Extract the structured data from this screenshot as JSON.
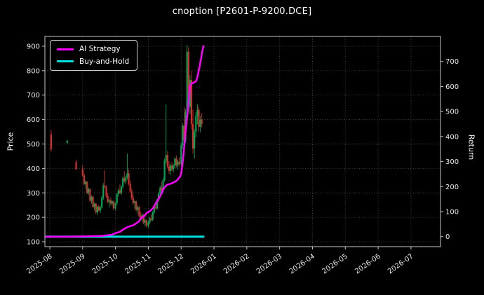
{
  "chart_data": {
    "type": "candlestick",
    "title": "cnoption [P2601-P-9200.DCE]",
    "x_unit": "months since 2025-08-01",
    "left_axis": {
      "label": "Price",
      "ticks": [
        100,
        200,
        300,
        400,
        500,
        600,
        700,
        800,
        900
      ],
      "ylim": [
        80,
        940
      ]
    },
    "right_axis": {
      "label": "Return",
      "ticks": [
        0,
        100,
        200,
        300,
        400,
        500,
        600,
        700
      ],
      "ylim": [
        -40,
        800
      ]
    },
    "x_axis": {
      "tick_labels": [
        "2025-08",
        "2025-09",
        "2025-10",
        "2025-11",
        "2025-12",
        "2026-01",
        "2026-02",
        "2026-03",
        "2026-04",
        "2026-05",
        "2026-06",
        "2026-07"
      ],
      "xlim": [
        -0.15,
        11.9
      ],
      "label_rotation_deg": 35
    },
    "grid": true,
    "legend": [
      {
        "label": "AI Strategy",
        "color": "#ff00ff"
      },
      {
        "label": "Buy-and-Hold",
        "color": "#00e0e0"
      }
    ],
    "colors": {
      "background": "#000000",
      "text": "#ffffff",
      "axis": "#c8c8c8",
      "grid": "#474747",
      "up": "#00a651",
      "down": "#d2302c"
    },
    "candles_ohlc": [
      [
        0.04,
        540,
        556,
        468,
        478
      ],
      [
        0.53,
        505,
        516,
        499,
        513
      ],
      [
        0.8,
        426,
        436,
        392,
        398
      ],
      [
        1.0,
        398,
        413,
        366,
        372
      ],
      [
        1.045,
        372,
        380,
        330,
        336
      ],
      [
        1.09,
        336,
        352,
        318,
        346
      ],
      [
        1.135,
        346,
        348,
        294,
        300
      ],
      [
        1.18,
        300,
        322,
        290,
        316
      ],
      [
        1.225,
        316,
        318,
        262,
        268
      ],
      [
        1.27,
        268,
        290,
        255,
        284
      ],
      [
        1.315,
        284,
        287,
        238,
        242
      ],
      [
        1.36,
        242,
        262,
        228,
        256
      ],
      [
        1.405,
        256,
        258,
        214,
        220
      ],
      [
        1.45,
        220,
        248,
        210,
        244
      ],
      [
        1.495,
        244,
        252,
        222,
        228
      ],
      [
        1.54,
        228,
        246,
        218,
        240
      ],
      [
        1.585,
        240,
        288,
        236,
        281
      ],
      [
        1.63,
        281,
        340,
        272,
        330
      ],
      [
        1.675,
        330,
        392,
        318,
        325
      ],
      [
        1.72,
        325,
        331,
        280,
        288
      ],
      [
        1.765,
        288,
        300,
        258,
        263
      ],
      [
        1.81,
        263,
        276,
        240,
        270
      ],
      [
        1.855,
        270,
        282,
        250,
        256
      ],
      [
        1.9,
        256,
        271,
        246,
        265
      ],
      [
        1.945,
        265,
        268,
        230,
        236
      ],
      [
        2.0,
        236,
        262,
        228,
        258
      ],
      [
        2.045,
        258,
        300,
        252,
        295
      ],
      [
        2.09,
        295,
        318,
        285,
        310
      ],
      [
        2.135,
        310,
        335,
        294,
        300
      ],
      [
        2.18,
        300,
        330,
        292,
        325
      ],
      [
        2.225,
        325,
        368,
        318,
        360
      ],
      [
        2.27,
        360,
        388,
        340,
        348
      ],
      [
        2.315,
        348,
        372,
        335,
        365
      ],
      [
        2.36,
        365,
        461,
        355,
        380
      ],
      [
        2.405,
        380,
        395,
        330,
        338
      ],
      [
        2.45,
        338,
        350,
        300,
        306
      ],
      [
        2.495,
        306,
        318,
        272,
        278
      ],
      [
        2.54,
        278,
        292,
        252,
        258
      ],
      [
        2.585,
        258,
        270,
        235,
        265
      ],
      [
        2.63,
        265,
        268,
        224,
        230
      ],
      [
        2.675,
        230,
        248,
        215,
        242
      ],
      [
        2.72,
        242,
        246,
        200,
        206
      ],
      [
        2.765,
        206,
        222,
        188,
        195
      ],
      [
        2.81,
        195,
        215,
        184,
        210
      ],
      [
        2.855,
        210,
        213,
        172,
        178
      ],
      [
        2.9,
        178,
        196,
        162,
        188
      ],
      [
        2.945,
        188,
        192,
        158,
        166
      ],
      [
        3.0,
        166,
        186,
        155,
        180
      ],
      [
        3.045,
        180,
        200,
        172,
        196
      ],
      [
        3.09,
        196,
        212,
        184,
        190
      ],
      [
        3.135,
        190,
        225,
        185,
        220
      ],
      [
        3.18,
        220,
        248,
        212,
        242
      ],
      [
        3.225,
        242,
        265,
        230,
        236
      ],
      [
        3.27,
        236,
        278,
        232,
        272
      ],
      [
        3.315,
        272,
        305,
        262,
        298
      ],
      [
        3.36,
        298,
        330,
        285,
        322
      ],
      [
        3.405,
        322,
        345,
        300,
        308
      ],
      [
        3.45,
        308,
        360,
        302,
        352
      ],
      [
        3.495,
        352,
        440,
        345,
        430
      ],
      [
        3.54,
        430,
        662,
        420,
        455
      ],
      [
        3.585,
        455,
        470,
        400,
        408
      ],
      [
        3.63,
        408,
        430,
        378,
        390
      ],
      [
        3.675,
        390,
        420,
        372,
        412
      ],
      [
        3.72,
        412,
        426,
        388,
        396
      ],
      [
        3.765,
        396,
        418,
        384,
        410
      ],
      [
        3.81,
        410,
        448,
        400,
        440
      ],
      [
        3.855,
        440,
        452,
        405,
        412
      ],
      [
        3.9,
        412,
        436,
        395,
        428
      ],
      [
        3.945,
        428,
        446,
        408,
        418
      ],
      [
        4.0,
        418,
        505,
        410,
        495
      ],
      [
        4.045,
        495,
        585,
        480,
        575
      ],
      [
        4.09,
        575,
        650,
        500,
        515
      ],
      [
        4.135,
        515,
        642,
        505,
        630
      ],
      [
        4.18,
        630,
        905,
        615,
        878
      ],
      [
        4.225,
        878,
        896,
        630,
        652
      ],
      [
        4.27,
        652,
        782,
        622,
        762
      ],
      [
        4.315,
        762,
        800,
        560,
        582
      ],
      [
        4.36,
        582,
        640,
        460,
        482
      ],
      [
        4.405,
        482,
        562,
        440,
        550
      ],
      [
        4.45,
        550,
        630,
        528,
        615
      ],
      [
        4.495,
        615,
        662,
        580,
        640
      ],
      [
        4.54,
        640,
        652,
        552,
        570
      ],
      [
        4.585,
        570,
        615,
        548,
        600
      ],
      [
        4.63,
        600,
        626,
        568,
        582
      ]
    ],
    "series": [
      {
        "name": "Buy-and-Hold",
        "axis": "right",
        "color": "#00e0e0",
        "width": 3,
        "points": [
          [
            -0.13,
            0
          ],
          [
            4.68,
            0
          ]
        ]
      },
      {
        "name": "AI Strategy",
        "axis": "right",
        "color": "#ff00ff",
        "width": 2.5,
        "points": [
          [
            -0.13,
            0
          ],
          [
            0.5,
            0
          ],
          [
            1.0,
            1
          ],
          [
            1.6,
            3
          ],
          [
            1.9,
            8
          ],
          [
            2.0,
            14
          ],
          [
            2.15,
            20
          ],
          [
            2.25,
            30
          ],
          [
            2.4,
            40
          ],
          [
            2.55,
            46
          ],
          [
            2.65,
            55
          ],
          [
            2.72,
            62
          ],
          [
            2.78,
            74
          ],
          [
            2.88,
            82
          ],
          [
            2.95,
            95
          ],
          [
            3.05,
            102
          ],
          [
            3.15,
            115
          ],
          [
            3.25,
            138
          ],
          [
            3.32,
            152
          ],
          [
            3.4,
            172
          ],
          [
            3.45,
            188
          ],
          [
            3.5,
            198
          ],
          [
            3.57,
            207
          ],
          [
            3.65,
            210
          ],
          [
            3.75,
            215
          ],
          [
            3.85,
            222
          ],
          [
            3.92,
            232
          ],
          [
            3.97,
            240
          ],
          [
            4.0,
            252
          ],
          [
            4.05,
            300
          ],
          [
            4.1,
            370
          ],
          [
            4.15,
            440
          ],
          [
            4.2,
            500
          ],
          [
            4.24,
            560
          ],
          [
            4.27,
            600
          ],
          [
            4.3,
            610
          ],
          [
            4.36,
            614
          ],
          [
            4.42,
            618
          ],
          [
            4.46,
            622
          ],
          [
            4.5,
            640
          ],
          [
            4.55,
            672
          ],
          [
            4.6,
            706
          ],
          [
            4.64,
            738
          ],
          [
            4.68,
            762
          ]
        ]
      }
    ]
  }
}
